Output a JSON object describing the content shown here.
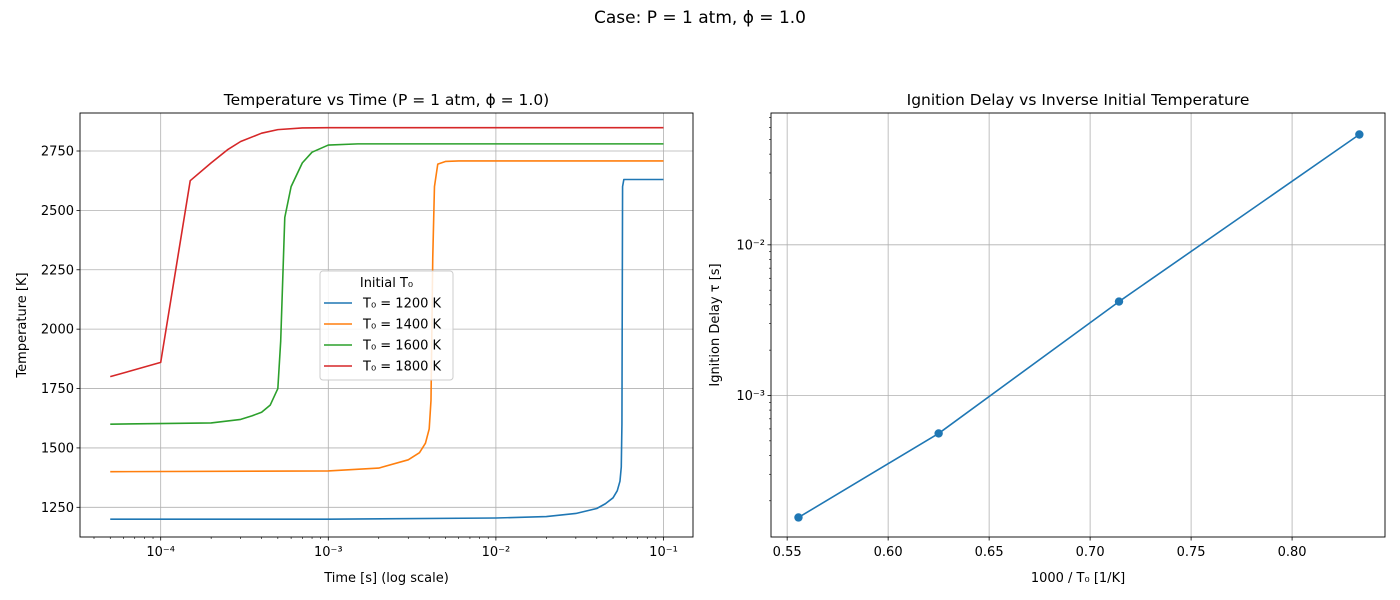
{
  "figure": {
    "suptitle": "Case: P = 1 atm, ϕ = 1.0"
  },
  "chart_data": [
    {
      "type": "line",
      "title": "Temperature vs Time (P = 1 atm, ϕ = 1.0)",
      "xlabel": "Time [s] (log scale)",
      "ylabel": "Temperature [K]",
      "xscale": "log",
      "xlim": [
        3.3e-05,
        0.15
      ],
      "ylim": [
        1125,
        2910
      ],
      "xticks": [
        0.0001,
        0.001,
        0.01,
        0.1
      ],
      "xtick_labels": [
        "10⁻⁴",
        "10⁻³",
        "10⁻²",
        "10⁻¹"
      ],
      "yticks": [
        1250,
        1500,
        1750,
        2000,
        2250,
        2500,
        2750
      ],
      "ytick_labels": [
        "1250",
        "1500",
        "1750",
        "2000",
        "2250",
        "2500",
        "2750"
      ],
      "grid": true,
      "legend": {
        "title": "Initial T₀",
        "placement": "center"
      },
      "series": [
        {
          "name": "T₀ = 1200 K",
          "color": "#1f77b4",
          "x": [
            5e-05,
            0.001,
            0.01,
            0.02,
            0.03,
            0.04,
            0.045,
            0.05,
            0.053,
            0.055,
            0.056,
            0.0565,
            0.057,
            0.058,
            0.06,
            0.1
          ],
          "y": [
            1200,
            1200,
            1205,
            1211,
            1224,
            1245,
            1265,
            1290,
            1320,
            1360,
            1420,
            1600,
            2600,
            2630,
            2630,
            2630
          ]
        },
        {
          "name": "T₀ = 1400 K",
          "color": "#ff7f0e",
          "x": [
            5e-05,
            0.001,
            0.002,
            0.003,
            0.0035,
            0.0038,
            0.004,
            0.0041,
            0.0042,
            0.0043,
            0.0045,
            0.005,
            0.006,
            0.1
          ],
          "y": [
            1400,
            1403,
            1415,
            1450,
            1480,
            1520,
            1580,
            1700,
            2300,
            2600,
            2695,
            2706,
            2708,
            2708
          ]
        },
        {
          "name": "T₀ = 1600 K",
          "color": "#2ca02c",
          "x": [
            5e-05,
            0.0002,
            0.0003,
            0.00035,
            0.0004,
            0.00045,
            0.0005,
            0.00052,
            0.00055,
            0.0006,
            0.0007,
            0.0008,
            0.001,
            0.0015,
            0.1
          ],
          "y": [
            1600,
            1605,
            1620,
            1635,
            1650,
            1680,
            1750,
            1950,
            2470,
            2600,
            2700,
            2745,
            2775,
            2780,
            2780
          ]
        },
        {
          "name": "T₀ = 1800 K",
          "color": "#d62728",
          "x": [
            5e-05,
            0.0001,
            0.00015,
            0.0002,
            0.00025,
            0.0003,
            0.0004,
            0.0005,
            0.0007,
            0.001,
            0.1
          ],
          "y": [
            1800,
            1860,
            2625,
            2700,
            2755,
            2790,
            2825,
            2840,
            2847,
            2848,
            2848
          ]
        }
      ]
    },
    {
      "type": "line",
      "title": "Ignition Delay vs Inverse Initial Temperature",
      "xlabel": "1000 / T₀ [1/K]",
      "ylabel": "Ignition Delay τ [s]",
      "yscale": "log",
      "xlim": [
        0.542,
        0.846
      ],
      "ylim": [
        0.000115,
        0.075
      ],
      "xticks": [
        0.55,
        0.6,
        0.65,
        0.7,
        0.75,
        0.8
      ],
      "xtick_labels": [
        "0.55",
        "0.60",
        "0.65",
        "0.70",
        "0.75",
        "0.80"
      ],
      "yticks": [
        0.001,
        0.01
      ],
      "ytick_labels": [
        "10⁻³",
        "10⁻²"
      ],
      "grid": true,
      "series": [
        {
          "color": "#1f77b4",
          "marker": "circle",
          "x": [
            0.5556,
            0.625,
            0.7143,
            0.8333
          ],
          "y": [
            0.000155,
            0.00056,
            0.0042,
            0.054
          ]
        }
      ]
    }
  ]
}
